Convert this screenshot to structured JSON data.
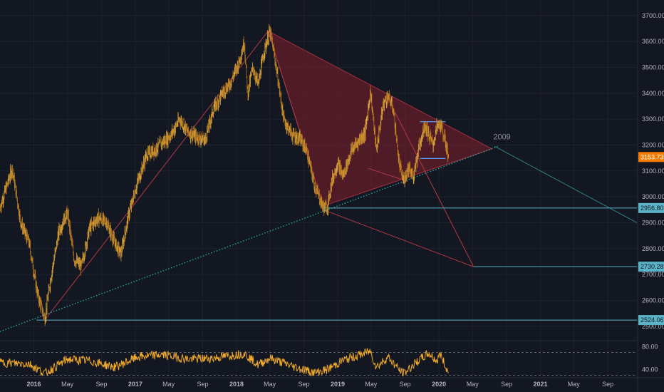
{
  "chart_data": {
    "type": "candlestick",
    "price_axis": {
      "range": [
        2450,
        3760
      ],
      "ticks": [
        {
          "value": 3700,
          "label": "3700.00"
        },
        {
          "value": 3600,
          "label": "3600.00"
        },
        {
          "value": 3500,
          "label": "3500.00"
        },
        {
          "value": 3400,
          "label": "3400.00"
        },
        {
          "value": 3300,
          "label": "3300.00"
        },
        {
          "value": 3200,
          "label": "3200.00"
        },
        {
          "value": 3100,
          "label": "3100.00"
        },
        {
          "value": 3000,
          "label": "3000.00"
        },
        {
          "value": 2900,
          "label": "2900.00"
        },
        {
          "value": 2800,
          "label": "2800.00"
        },
        {
          "value": 2700,
          "label": "2700.00"
        },
        {
          "value": 2600,
          "label": "2600.00"
        },
        {
          "value": 2500,
          "label": "2500.00"
        }
      ]
    },
    "time_axis": {
      "range": [
        "2015-09-01",
        "2021-12-15"
      ],
      "ticks": [
        {
          "date": "2016-01-01",
          "label": "2016",
          "bold": true
        },
        {
          "date": "2016-05-01",
          "label": "May",
          "bold": false
        },
        {
          "date": "2016-09-01",
          "label": "Sep",
          "bold": false
        },
        {
          "date": "2017-01-01",
          "label": "2017",
          "bold": true
        },
        {
          "date": "2017-05-01",
          "label": "May",
          "bold": false
        },
        {
          "date": "2017-09-01",
          "label": "Sep",
          "bold": false
        },
        {
          "date": "2018-01-01",
          "label": "2018",
          "bold": true
        },
        {
          "date": "2018-05-01",
          "label": "May",
          "bold": false
        },
        {
          "date": "2018-09-01",
          "label": "Sep",
          "bold": false
        },
        {
          "date": "2019-01-01",
          "label": "2019",
          "bold": true
        },
        {
          "date": "2019-05-01",
          "label": "May",
          "bold": false
        },
        {
          "date": "2019-09-01",
          "label": "Sep",
          "bold": false
        },
        {
          "date": "2020-01-01",
          "label": "2020",
          "bold": true
        },
        {
          "date": "2020-05-01",
          "label": "May",
          "bold": false
        },
        {
          "date": "2020-09-01",
          "label": "Sep",
          "bold": false
        },
        {
          "date": "2021-01-01",
          "label": "2021",
          "bold": true
        },
        {
          "date": "2021-05-01",
          "label": "May",
          "bold": false
        },
        {
          "date": "2021-09-01",
          "label": "Sep",
          "bold": false
        }
      ]
    },
    "price_path": [
      [
        "2015-09-01",
        2960
      ],
      [
        "2015-10-15",
        3110
      ],
      [
        "2015-11-15",
        2900
      ],
      [
        "2015-12-15",
        2820
      ],
      [
        "2016-01-15",
        2620
      ],
      [
        "2016-02-10",
        2530
      ],
      [
        "2016-03-01",
        2680
      ],
      [
        "2016-04-01",
        2870
      ],
      [
        "2016-05-01",
        2940
      ],
      [
        "2016-05-25",
        2760
      ],
      [
        "2016-06-20",
        2730
      ],
      [
        "2016-07-20",
        2880
      ],
      [
        "2016-08-20",
        2920
      ],
      [
        "2016-09-20",
        2900
      ],
      [
        "2016-10-20",
        2820
      ],
      [
        "2016-11-10",
        2780
      ],
      [
        "2016-12-10",
        2940
      ],
      [
        "2017-01-10",
        3060
      ],
      [
        "2017-02-10",
        3160
      ],
      [
        "2017-03-10",
        3180
      ],
      [
        "2017-04-10",
        3210
      ],
      [
        "2017-05-10",
        3240
      ],
      [
        "2017-06-10",
        3300
      ],
      [
        "2017-07-10",
        3250
      ],
      [
        "2017-08-10",
        3230
      ],
      [
        "2017-09-10",
        3220
      ],
      [
        "2017-10-10",
        3340
      ],
      [
        "2017-11-10",
        3400
      ],
      [
        "2017-12-10",
        3440
      ],
      [
        "2018-01-10",
        3520
      ],
      [
        "2018-01-29",
        3600
      ],
      [
        "2018-02-10",
        3400
      ],
      [
        "2018-03-01",
        3500
      ],
      [
        "2018-03-20",
        3430
      ],
      [
        "2018-04-10",
        3560
      ],
      [
        "2018-05-01",
        3640
      ],
      [
        "2018-05-20",
        3530
      ],
      [
        "2018-06-20",
        3300
      ],
      [
        "2018-07-20",
        3240
      ],
      [
        "2018-08-20",
        3220
      ],
      [
        "2018-09-10",
        3180
      ],
      [
        "2018-10-10",
        3040
      ],
      [
        "2018-11-10",
        2960
      ],
      [
        "2018-11-25",
        2960
      ],
      [
        "2018-12-10",
        3060
      ],
      [
        "2019-01-01",
        3130
      ],
      [
        "2019-01-20",
        3080
      ],
      [
        "2019-02-20",
        3180
      ],
      [
        "2019-03-20",
        3220
      ],
      [
        "2019-04-10",
        3250
      ],
      [
        "2019-04-29",
        3410
      ],
      [
        "2019-05-20",
        3180
      ],
      [
        "2019-06-15",
        3360
      ],
      [
        "2019-07-01",
        3390
      ],
      [
        "2019-07-20",
        3340
      ],
      [
        "2019-08-10",
        3130
      ],
      [
        "2019-08-25",
        3060
      ],
      [
        "2019-09-15",
        3120
      ],
      [
        "2019-10-01",
        3070
      ],
      [
        "2019-10-20",
        3190
      ],
      [
        "2019-11-10",
        3280
      ],
      [
        "2019-11-25",
        3240
      ],
      [
        "2019-12-10",
        3200
      ],
      [
        "2019-12-25",
        3270
      ],
      [
        "2020-01-05",
        3280
      ],
      [
        "2020-01-20",
        3230
      ],
      [
        "2020-02-05",
        3154
      ]
    ],
    "rsi": {
      "range": [
        28,
        88
      ],
      "ticks": [
        {
          "value": 80,
          "label": "80.00"
        },
        {
          "value": 40,
          "label": "40.00"
        }
      ],
      "bands": [
        70,
        30
      ],
      "path": [
        [
          "2015-09-01",
          52
        ],
        [
          "2015-12-15",
          50
        ],
        [
          "2016-02-10",
          33
        ],
        [
          "2016-05-01",
          58
        ],
        [
          "2016-07-20",
          55
        ],
        [
          "2016-10-20",
          44
        ],
        [
          "2017-01-10",
          62
        ],
        [
          "2017-04-10",
          66
        ],
        [
          "2017-07-10",
          58
        ],
        [
          "2017-10-10",
          60
        ],
        [
          "2018-01-29",
          68
        ],
        [
          "2018-03-20",
          48
        ],
        [
          "2018-05-01",
          60
        ],
        [
          "2018-07-20",
          46
        ],
        [
          "2018-10-10",
          34
        ],
        [
          "2018-11-25",
          40
        ],
        [
          "2019-01-20",
          56
        ],
        [
          "2019-04-29",
          72
        ],
        [
          "2019-05-20",
          44
        ],
        [
          "2019-07-01",
          62
        ],
        [
          "2019-08-25",
          32
        ],
        [
          "2019-10-20",
          56
        ],
        [
          "2019-11-25",
          68
        ],
        [
          "2019-12-25",
          54
        ],
        [
          "2020-01-05",
          68
        ],
        [
          "2020-02-05",
          32
        ]
      ]
    },
    "drawings": {
      "triangle": {
        "points": [
          [
            "2018-04-25",
            3640
          ],
          [
            "2020-07-10",
            3185
          ],
          [
            "2018-11-10",
            2965
          ]
        ],
        "fill": "#7f1f2a",
        "fill_opacity": 0.55
      },
      "trend_dotted": {
        "from": [
          "2015-09-01",
          2480
        ],
        "to": [
          "2020-08-01",
          3195
        ]
      },
      "thin_lines": [
        {
          "from": [
            "2016-02-10",
            2525
          ],
          "to": [
            "2018-04-25",
            3640
          ]
        },
        {
          "from": [
            "2018-04-25",
            3640
          ],
          "to": [
            "2018-11-10",
            2965
          ]
        },
        {
          "from": [
            "2018-11-10",
            2950
          ],
          "to": [
            "2020-05-05",
            2730
          ]
        },
        {
          "from": [
            "2019-07-01",
            3380
          ],
          "to": [
            "2020-05-05",
            2730
          ]
        },
        {
          "from": [
            "2019-04-20",
            3110
          ],
          "to": [
            "2019-09-10",
            3060
          ]
        }
      ],
      "projection": {
        "from": [
          "2020-07-20",
          3195
        ],
        "to": [
          "2021-12-15",
          2900
        ],
        "label": "2009"
      },
      "channel_lines": [
        {
          "from": [
            "2019-10-25",
            3290
          ],
          "to": [
            "2020-01-25",
            3290
          ]
        },
        {
          "from": [
            "2019-10-25",
            3148
          ],
          "to": [
            "2020-01-25",
            3148
          ]
        }
      ],
      "levels": [
        {
          "price": 2956.8,
          "label": "2956.80",
          "start": "2018-11-10",
          "color": "#5ab3c7",
          "text": "#131722"
        },
        {
          "price": 2730.28,
          "label": "2730.28",
          "start": "2020-05-05",
          "color": "#5ab3c7",
          "text": "#131722"
        },
        {
          "price": 2524.06,
          "label": "2524.06",
          "start": "2016-01-10",
          "color": "#5ab3c7",
          "text": "#131722"
        }
      ],
      "current_price": {
        "price": 3153.73,
        "label": "3153.73",
        "color": "#f57c00"
      }
    },
    "colors": {
      "background": "#131722",
      "candle_up": "#d9a43a",
      "candle_down": "#b5741c",
      "rsi_line": "#f0a92a",
      "trend_line": "#b23a48",
      "dotted_line": "#26a69a",
      "projection_line": "#2f7f80"
    }
  }
}
